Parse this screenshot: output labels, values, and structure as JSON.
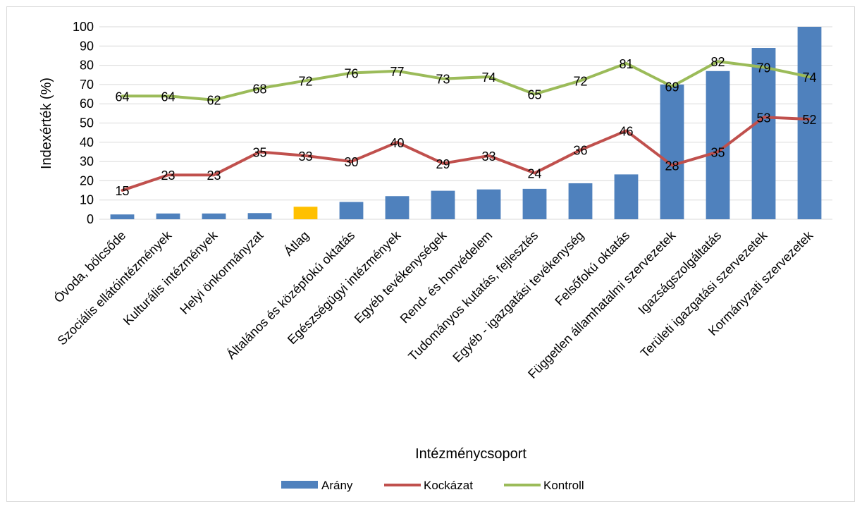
{
  "chart_data": {
    "type": "bar",
    "title": "",
    "xlabel": "Intézménycsoport",
    "ylabel": "Indexérték (%)",
    "ylim": [
      0,
      100
    ],
    "yticks": [
      0,
      10,
      20,
      30,
      40,
      50,
      60,
      70,
      80,
      90,
      100
    ],
    "grid": true,
    "legend_position": "bottom",
    "categories": [
      "Óvoda, bölcsőde",
      "Szociális ellátóintézmények",
      "Kulturális intézmények",
      "Helyi önkormányzat",
      "Átlag",
      "Általános és középfokú oktatás",
      "Egészségügyi intézmények",
      "Egyéb tevékenységek",
      "Rend- és honvédelem",
      "Tudományos kutatás, fejlesztés",
      "Egyéb - igazgatási tevékenység",
      "Felsőfokú oktatás",
      "Független államhatalmi szervezetek",
      "Igazságszolgáltatás",
      "Területi igazgatási szervezetek",
      "Kormányzati szervezetek"
    ],
    "series": [
      {
        "name": "Arány",
        "kind": "bar",
        "color": "#4f81bd",
        "highlight_index": 4,
        "highlight_color": "#ffc000",
        "values": [
          2.5,
          3,
          3,
          3.2,
          6.5,
          9,
          12,
          14.8,
          15.5,
          15.8,
          18.7,
          23.3,
          70,
          77,
          89,
          100
        ]
      },
      {
        "name": "Kockázat",
        "kind": "line",
        "color": "#c0504d",
        "values": [
          15,
          23,
          23,
          35,
          33,
          30,
          40,
          29,
          33,
          24,
          36,
          46,
          28,
          35,
          53,
          52
        ]
      },
      {
        "name": "Kontroll",
        "kind": "line",
        "color": "#9bbb59",
        "values": [
          64,
          64,
          62,
          68,
          72,
          76,
          77,
          73,
          74,
          65,
          72,
          81,
          69,
          82,
          79,
          74
        ]
      }
    ]
  }
}
